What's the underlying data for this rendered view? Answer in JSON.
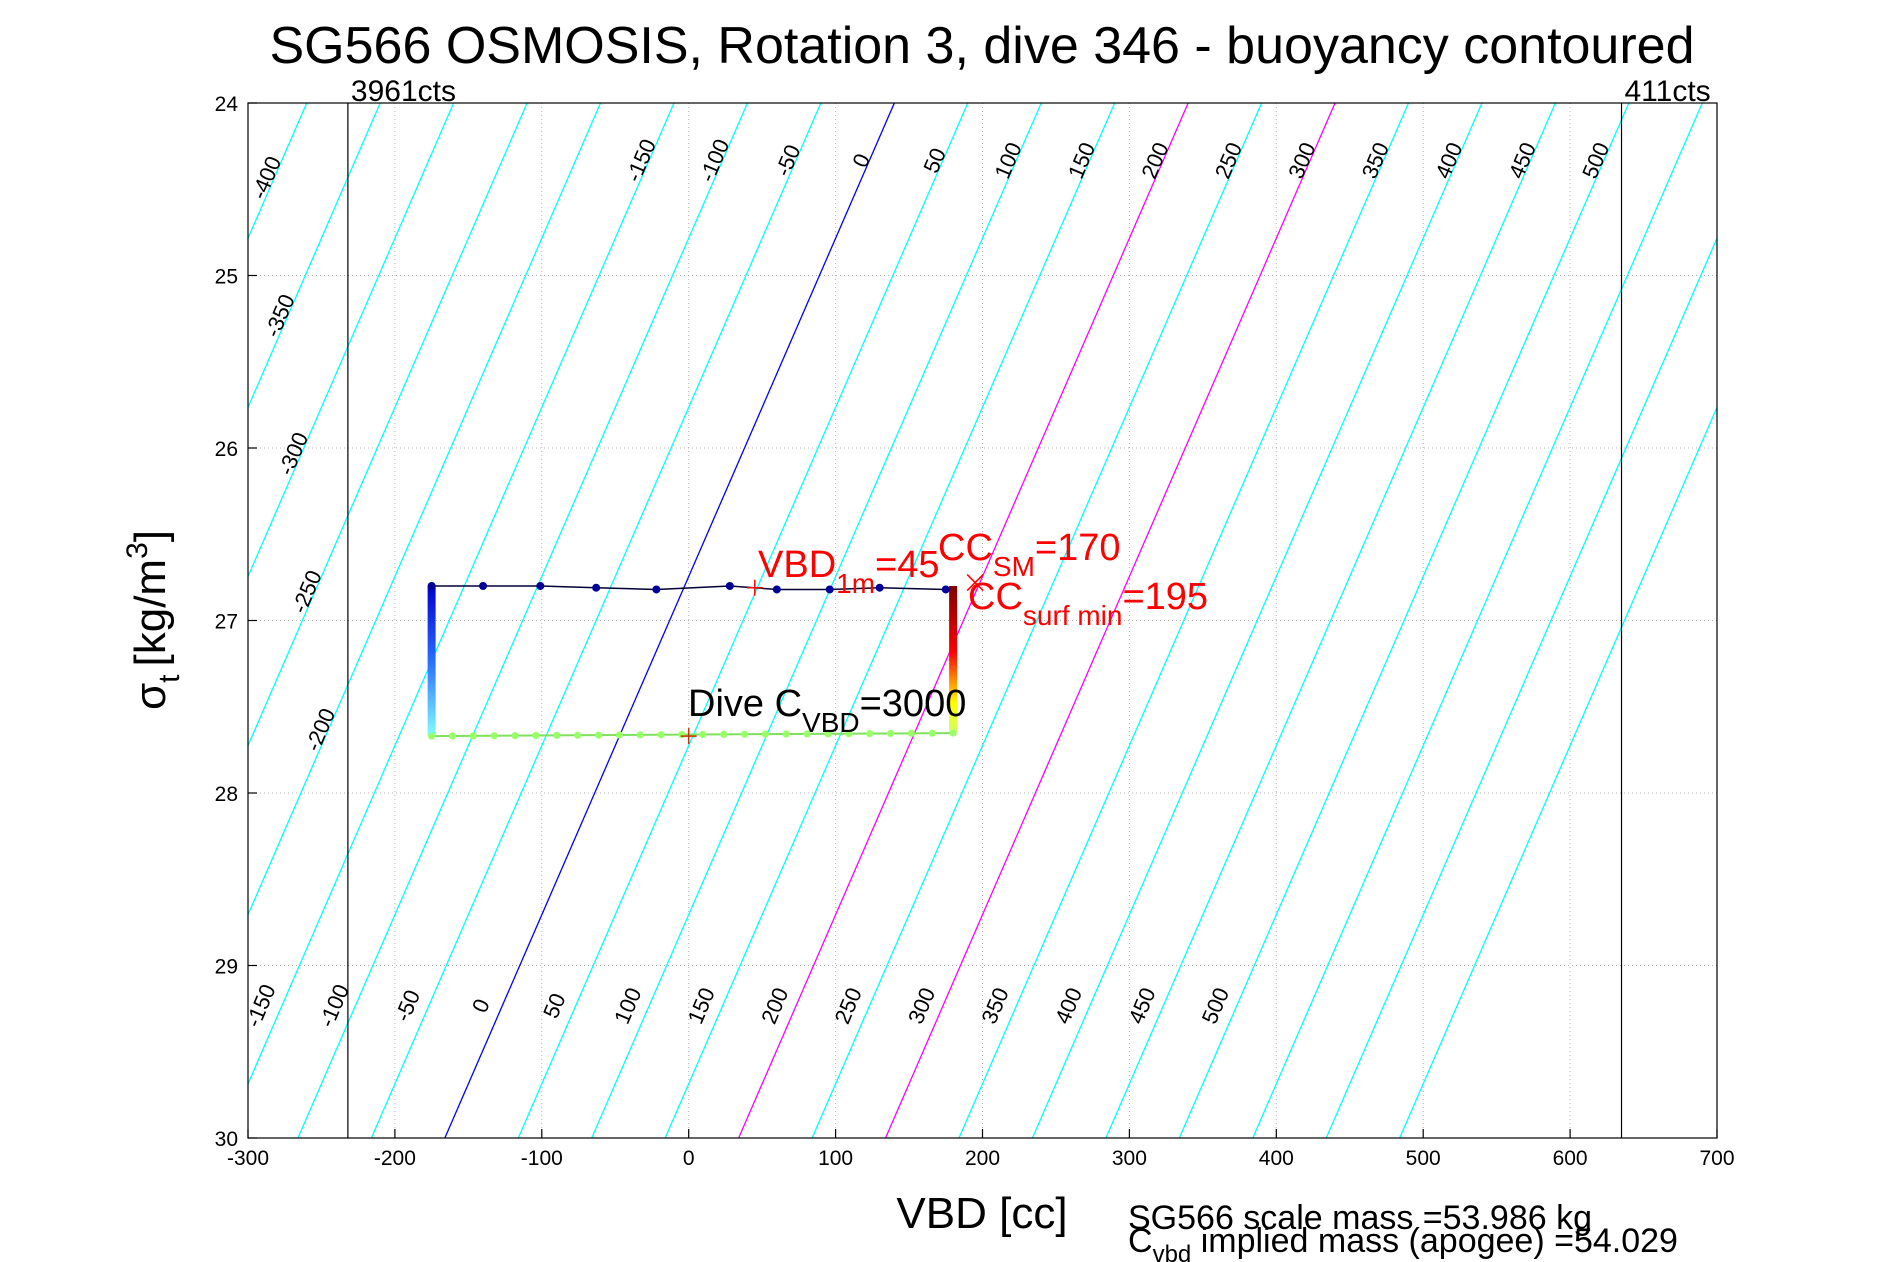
{
  "chart_data": {
    "type": "scatter",
    "title": "SG566 OSMOSIS, Rotation 3, dive 346 - buoyancy contoured",
    "xlabel": "VBD [cc]",
    "ylabel": {
      "sigma": "σ",
      "sigma_sub": "t",
      "units": "[kg/m",
      "units_sup": "3",
      "units_close": "]"
    },
    "xlim": [
      -300,
      700
    ],
    "ylim": [
      24,
      30
    ],
    "y_reversed": true,
    "grid": true,
    "xticks": [
      -300,
      -200,
      -100,
      0,
      100,
      200,
      300,
      400,
      500,
      600,
      700
    ],
    "yticks": [
      24,
      25,
      26,
      27,
      28,
      29,
      30
    ],
    "limit_lines": [
      {
        "x": -232,
        "label": "3961cts"
      },
      {
        "x": 635,
        "label": "411cts"
      }
    ],
    "buoyancy_contours": {
      "levels": [
        -400,
        -350,
        -300,
        -250,
        -200,
        -150,
        -100,
        -50,
        0,
        50,
        100,
        150,
        200,
        250,
        300,
        350,
        400,
        450,
        500,
        550,
        600,
        650
      ],
      "color": "#00ffff",
      "highlight": {
        "0": "#0000ff",
        "200": "#ff00ff",
        "300": "#ff00ff"
      },
      "top_labels": [
        "-400",
        "-350",
        "-300",
        "-250",
        "-200",
        "-150",
        "-100",
        "-50",
        "0",
        "50",
        "100",
        "150",
        "200",
        "250",
        "300",
        "350",
        "400",
        "450",
        "500"
      ],
      "bottom_labels": [
        "-150",
        "-100",
        "-50",
        "0",
        "50",
        "100",
        "150",
        "200",
        "250",
        "300",
        "350",
        "400",
        "450",
        "500"
      ]
    },
    "dive_profile": {
      "top_segment": {
        "x": [
          -175,
          -140,
          -101,
          -63,
          -22,
          28,
          60,
          96,
          130,
          175
        ],
        "y": [
          26.8,
          26.8,
          26.8,
          26.81,
          26.82,
          26.8,
          26.82,
          26.82,
          26.81,
          26.82
        ],
        "color": "#000099"
      },
      "left_segment": {
        "x": -175,
        "y_range": [
          26.8,
          27.67
        ],
        "color_top": "#0000cc",
        "color_bottom": "#80ffff"
      },
      "bottom_segment": {
        "x_range": [
          -175,
          180
        ],
        "y": 27.67,
        "color": "#99ff66",
        "n_points": 26
      },
      "right_segment": {
        "x": 180,
        "y_range": [
          26.8,
          27.65
        ],
        "color_top": "#800000",
        "color_mid": "#ff0000",
        "color_bottom": "#ffff00"
      }
    },
    "annotations": [
      {
        "name": "cc-sm",
        "main": "CC",
        "sub": "SM",
        "suffix": "=170",
        "color": "#ff0000"
      },
      {
        "name": "vbd-1m",
        "main": "VBD",
        "sub": "1m",
        "suffix": "=45",
        "color": "#ff0000"
      },
      {
        "name": "cc-surf-min",
        "main": "CC",
        "sub": "surf min",
        "suffix": "=195",
        "color": "#ff0000"
      },
      {
        "name": "dive-cvbd",
        "main": "Dive C",
        "sub": "VBD",
        "suffix": "=3000",
        "color": "#000000"
      }
    ],
    "markers": [
      {
        "x": 45,
        "y": 26.81,
        "symbol": "+",
        "color": "#ff0000"
      },
      {
        "x": 195,
        "y": 26.78,
        "symbol": "x",
        "color": "#ff0000"
      },
      {
        "x": 0,
        "y": 27.67,
        "symbol": "+",
        "color": "#cc3300"
      }
    ],
    "footer": {
      "line1": "SG566 scale mass =53.986 kg",
      "line2_main": "C",
      "line2_sub": "vbd",
      "line2_rest": " implied mass (apogee) =54.029"
    }
  }
}
